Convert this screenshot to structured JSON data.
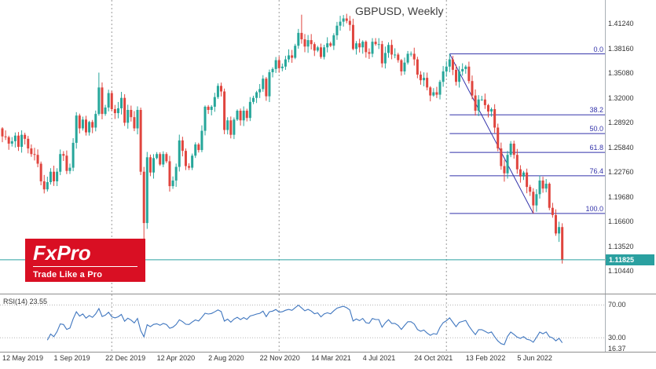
{
  "chart": {
    "title": "GBPUSD, Weekly",
    "symbol": "GBPUSD",
    "timeframe": "Weekly",
    "current_price_label": "1.11825",
    "colors": {
      "up": "#26a69a",
      "down": "#e0453e",
      "fib": "#3333aa",
      "price_line": "#2aa0a0",
      "rsi": "#3f76bf",
      "separator": "#999999",
      "chrome": "#8f8f8f"
    }
  },
  "logo": {
    "name": "FxPro",
    "tagline": "Trade Like a Pro",
    "bg": "#d90f23"
  },
  "rsi": {
    "name": "RSI(14)",
    "value": "23.55"
  },
  "chart_data": {
    "type": "candlestick",
    "title": "GBPUSD, Weekly",
    "ylim": [
      1.078,
      1.442
    ],
    "price_axis_labels": [
      "1.41240",
      "1.38160",
      "1.35080",
      "1.32000",
      "1.28920",
      "1.25840",
      "1.22760",
      "1.19680",
      "1.16600",
      "1.13520",
      "1.10440"
    ],
    "x_tick_labels": [
      {
        "index": 0,
        "label": "12 May 2019"
      },
      {
        "index": 16,
        "label": "1 Sep 2019"
      },
      {
        "index": 32,
        "label": "22 Dec 2019"
      },
      {
        "index": 48,
        "label": "12 Apr 2020"
      },
      {
        "index": 64,
        "label": "2 Aug 2020"
      },
      {
        "index": 80,
        "label": "22 Nov 2020"
      },
      {
        "index": 96,
        "label": "14 Mar 2021"
      },
      {
        "index": 112,
        "label": "4 Jul 2021"
      },
      {
        "index": 128,
        "label": "24 Oct 2021"
      },
      {
        "index": 144,
        "label": "13 Feb 2022"
      },
      {
        "index": 160,
        "label": "5 Jun 2022"
      }
    ],
    "first_open": 1.282,
    "closes": [
      1.272,
      1.271,
      1.263,
      1.266,
      1.273,
      1.259,
      1.274,
      1.269,
      1.257,
      1.25,
      1.249,
      1.238,
      1.216,
      1.206,
      1.215,
      1.228,
      1.216,
      1.228,
      1.25,
      1.248,
      1.229,
      1.233,
      1.264,
      1.298,
      1.282,
      1.293,
      1.277,
      1.29,
      1.283,
      1.3,
      1.333,
      1.3,
      1.308,
      1.326,
      1.306,
      1.301,
      1.307,
      1.32,
      1.289,
      1.305,
      1.296,
      1.282,
      1.305,
      1.228,
      1.164,
      1.246,
      1.227,
      1.245,
      1.25,
      1.237,
      1.25,
      1.241,
      1.21,
      1.217,
      1.234,
      1.267,
      1.254,
      1.235,
      1.233,
      1.248,
      1.262,
      1.255,
      1.279,
      1.309,
      1.305,
      1.309,
      1.321,
      1.335,
      1.328,
      1.28,
      1.292,
      1.274,
      1.293,
      1.304,
      1.292,
      1.304,
      1.295,
      1.315,
      1.32,
      1.327,
      1.331,
      1.344,
      1.322,
      1.352,
      1.356,
      1.367,
      1.357,
      1.359,
      1.368,
      1.373,
      1.37,
      1.385,
      1.401,
      1.393,
      1.384,
      1.392,
      1.387,
      1.379,
      1.383,
      1.371,
      1.383,
      1.388,
      1.385,
      1.398,
      1.41,
      1.415,
      1.419,
      1.416,
      1.411,
      1.381,
      1.388,
      1.383,
      1.39,
      1.377,
      1.375,
      1.39,
      1.387,
      1.387,
      1.363,
      1.376,
      1.386,
      1.374,
      1.374,
      1.367,
      1.353,
      1.364,
      1.375,
      1.375,
      1.368,
      1.349,
      1.342,
      1.345,
      1.333,
      1.323,
      1.327,
      1.324,
      1.34,
      1.353,
      1.359,
      1.368,
      1.355,
      1.34,
      1.353,
      1.356,
      1.359,
      1.341,
      1.323,
      1.304,
      1.318,
      1.318,
      1.311,
      1.303,
      1.306,
      1.283,
      1.257,
      1.235,
      1.226,
      1.249,
      1.263,
      1.249,
      1.231,
      1.222,
      1.227,
      1.209,
      1.203,
      1.186,
      1.2,
      1.217,
      1.207,
      1.213,
      1.183,
      1.174,
      1.151,
      1.159,
      1.1182
    ],
    "wick_overrides": {
      "30": {
        "h": 1.3515
      },
      "44": {
        "l": 1.141
      },
      "93": {
        "h": 1.4237
      },
      "106": {
        "h": 1.4233
      },
      "107": {
        "h": 1.4248
      },
      "139": {
        "h": 1.3749
      },
      "156": {
        "l": 1.2156
      },
      "165": {
        "l": 1.176
      },
      "173": {
        "l": 1.1405
      },
      "174": {
        "l": 1.1135
      }
    },
    "current_price": 1.11825,
    "year_separator_indices": [
      34,
      86,
      138
    ],
    "fibonacci": {
      "anchor1": {
        "index": 139,
        "price": 1.3749
      },
      "anchor2": {
        "index": 165,
        "price": 1.176
      },
      "levels": [
        {
          "label": "0.0",
          "price": 1.3749
        },
        {
          "label": "38.2",
          "price": 1.2989
        },
        {
          "label": "50.0",
          "price": 1.2755
        },
        {
          "label": "61.8",
          "price": 1.252
        },
        {
          "label": "76.4",
          "price": 1.2229
        },
        {
          "label": "100.0",
          "price": 1.176
        }
      ]
    },
    "rsi_panel": {
      "type": "line",
      "label": "RSI(14) 23.55",
      "period": 14,
      "levels": [
        70,
        30
      ],
      "range_labels": {
        "upper": "70.00",
        "lower": "30.00",
        "min": "16.37"
      },
      "ylim": [
        13,
        81
      ]
    }
  }
}
